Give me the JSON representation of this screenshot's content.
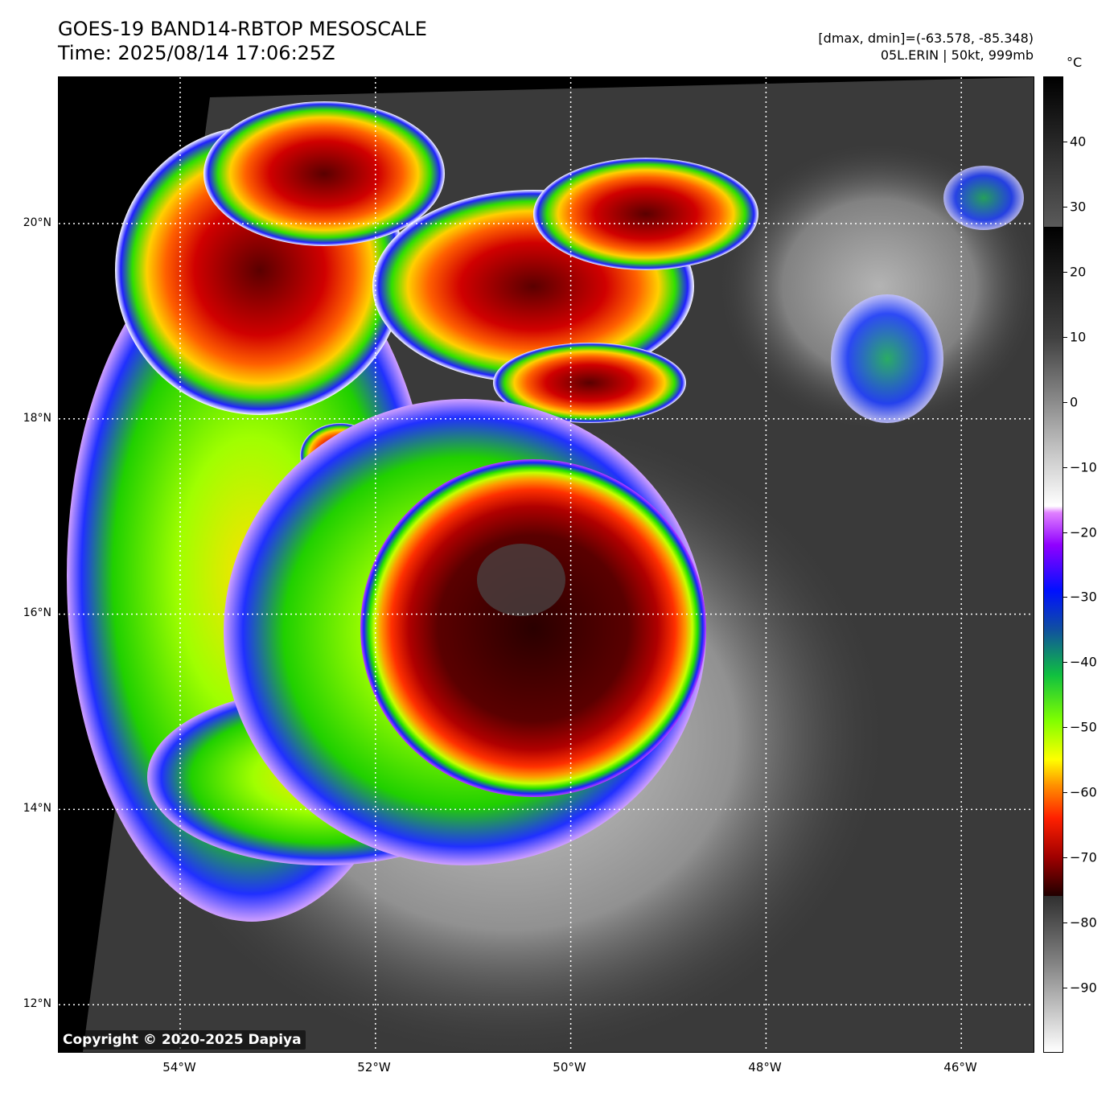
{
  "header": {
    "title_line1": "GOES-19 BAND14-RBTOP MESOSCALE",
    "title_line2": "Time: 2025/08/14 17:06:25Z",
    "info_line1": "[dmax, dmin]=(-63.578, -85.348)",
    "info_line2": "05L.ERIN | 50kt, 999mb"
  },
  "map": {
    "lat_labels": [
      "20°N",
      "18°N",
      "16°N",
      "14°N",
      "12°N"
    ],
    "lon_labels": [
      "54°W",
      "52°W",
      "50°W",
      "48°W",
      "46°W"
    ],
    "lat_values": [
      20,
      18,
      16,
      14,
      12
    ],
    "lon_values": [
      -54,
      -52,
      -50,
      -48,
      -46
    ],
    "storm": {
      "name": "05L.ERIN",
      "center_lat": 15.9,
      "center_lon": -50.0
    }
  },
  "colorbar": {
    "unit": "°C",
    "tick_labels": [
      "40",
      "30",
      "20",
      "10",
      "0",
      "−10",
      "−20",
      "−30",
      "−40",
      "−50",
      "−60",
      "−70",
      "−80",
      "−90"
    ],
    "tick_values": [
      40,
      30,
      20,
      10,
      0,
      -10,
      -20,
      -30,
      -40,
      -50,
      -60,
      -70,
      -80,
      -90
    ],
    "range": [
      -100,
      50
    ]
  },
  "footer": {
    "copyright": "Copyright © 2020-2025 Dapiya"
  }
}
